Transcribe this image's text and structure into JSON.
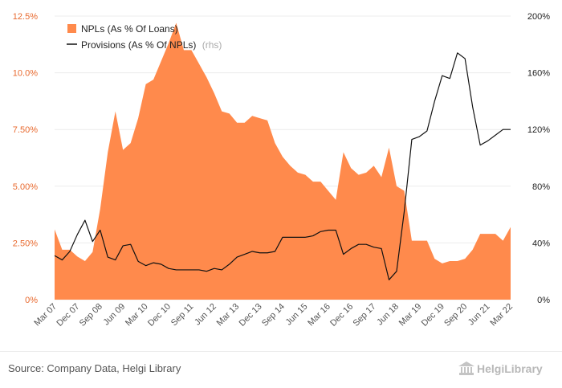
{
  "chart_data": {
    "type": "area",
    "x": [
      "Mar 07",
      "Jun 07",
      "Sep 07",
      "Dec 07",
      "Mar 08",
      "Jun 08",
      "Sep 08",
      "Dec 08",
      "Mar 09",
      "Jun 09",
      "Sep 09",
      "Dec 09",
      "Mar 10",
      "Jun 10",
      "Sep 10",
      "Dec 10",
      "Mar 11",
      "Jun 11",
      "Sep 11",
      "Dec 11",
      "Mar 12",
      "Jun 12",
      "Sep 12",
      "Dec 12",
      "Mar 13",
      "Jun 13",
      "Sep 13",
      "Dec 13",
      "Mar 14",
      "Jun 14",
      "Sep 14",
      "Dec 14",
      "Mar 15",
      "Jun 15",
      "Sep 15",
      "Dec 15",
      "Mar 16",
      "Jun 16",
      "Sep 16",
      "Dec 16",
      "Mar 17",
      "Jun 17",
      "Sep 17",
      "Dec 17",
      "Mar 18",
      "Jun 18",
      "Sep 18",
      "Dec 18",
      "Mar 19",
      "Jun 19",
      "Sep 19",
      "Dec 19",
      "Mar 20",
      "Jun 20",
      "Sep 20",
      "Dec 20",
      "Mar 21",
      "Jun 21",
      "Sep 21",
      "Dec 21",
      "Mar 22"
    ],
    "x_tick_labels": [
      "Mar 07",
      "Dec 07",
      "Sep 08",
      "Jun 09",
      "Mar 10",
      "Dec 10",
      "Sep 11",
      "Jun 12",
      "Mar 13",
      "Dec 13",
      "Sep 14",
      "Jun 15",
      "Mar 16",
      "Dec 16",
      "Sep 17",
      "Jun 18",
      "Mar 19",
      "Dec 19",
      "Sep 20",
      "Jun 21",
      "Mar 22"
    ],
    "series": [
      {
        "name": "NPLs (As % Of Loans)",
        "axis": "left",
        "style": "area",
        "color": "#ff8a4c",
        "values": [
          3.1,
          2.2,
          2.2,
          1.9,
          1.7,
          2.1,
          4.0,
          6.5,
          8.3,
          6.6,
          6.9,
          8.0,
          9.5,
          9.7,
          10.5,
          11.3,
          12.2,
          11.0,
          11.0,
          10.4,
          9.8,
          9.1,
          8.3,
          8.2,
          7.8,
          7.8,
          8.1,
          8.0,
          7.9,
          6.9,
          6.3,
          5.9,
          5.6,
          5.5,
          5.2,
          5.2,
          4.8,
          4.4,
          6.5,
          5.8,
          5.5,
          5.6,
          5.9,
          5.4,
          6.7,
          5.0,
          4.8,
          2.6,
          2.6,
          2.6,
          1.8,
          1.6,
          1.7,
          1.7,
          1.8,
          2.2,
          2.9,
          2.9,
          2.9,
          2.6,
          3.2
        ]
      },
      {
        "name": "Provisions (As % Of NPLs)",
        "axis": "right",
        "style": "line",
        "color": "#111111",
        "values": [
          31,
          28,
          34,
          46,
          56,
          41,
          49,
          30,
          28,
          38,
          39,
          27,
          24,
          26,
          25,
          22,
          21,
          21,
          21,
          21,
          20,
          22,
          21,
          25,
          30,
          32,
          34,
          33,
          33,
          34,
          44,
          44,
          44,
          44,
          45,
          48,
          49,
          49,
          32,
          36,
          39,
          39,
          37,
          36,
          14,
          20,
          62,
          113,
          115,
          119,
          140,
          158,
          156,
          174,
          170,
          136,
          109,
          112,
          116,
          120,
          120
        ]
      }
    ],
    "y_left": {
      "ylim": [
        0,
        12.5
      ],
      "tick_labels": [
        "0%",
        "2.50%",
        "5.00%",
        "7.50%",
        "10.0%",
        "12.5%"
      ],
      "ticks": [
        0,
        2.5,
        5,
        7.5,
        10,
        12.5
      ]
    },
    "y_right": {
      "ylim": [
        0,
        200
      ],
      "tick_labels": [
        "0%",
        "40%",
        "80%",
        "120%",
        "160%",
        "200%"
      ],
      "ticks": [
        0,
        40,
        80,
        120,
        160,
        200
      ]
    },
    "legend": {
      "placement": "top-left",
      "rhs_suffix": "(rhs)"
    },
    "grid": true
  },
  "footer": {
    "source": "Source: Company Data, Helgi Library",
    "logo_text": "HelgiLibrary"
  }
}
